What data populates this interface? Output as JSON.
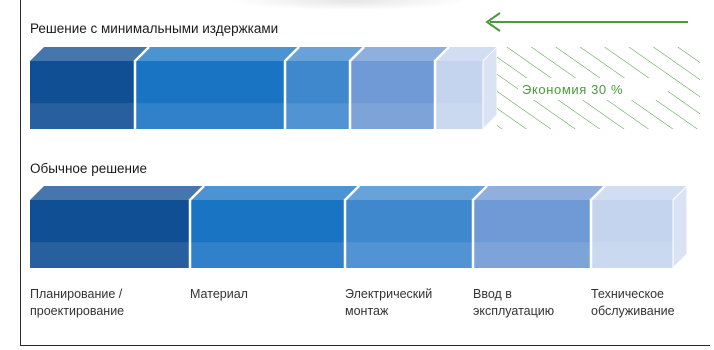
{
  "chart_data": {
    "type": "bar",
    "orientation": "horizontal-stacked-3d",
    "categories": [
      "Планирование / проектирование",
      "Материал",
      "Электрический монтаж",
      "Ввод в эксплуатацию",
      "Техническое обслуживание"
    ],
    "series": [
      {
        "name": "Решение с минимальными издержками",
        "values": [
          105,
          150,
          65,
          85,
          48
        ],
        "savings_label": "Экономия 30 %"
      },
      {
        "name": "Обычное решение",
        "values": [
          160,
          155,
          128,
          118,
          82
        ]
      }
    ],
    "category_lines": [
      [
        "Планирование /",
        "проектирование"
      ],
      [
        "Материал"
      ],
      [
        "Электрический",
        "монтаж"
      ],
      [
        "Ввод в",
        "эксплуатацию"
      ],
      [
        "Техническое",
        "обслуживание"
      ]
    ],
    "colors": {
      "segments": [
        "#114f94",
        "#1a74c4",
        "#3f88ce",
        "#6f9ad5",
        "#c4d4ee"
      ],
      "savings": "#4a9a3c"
    }
  }
}
